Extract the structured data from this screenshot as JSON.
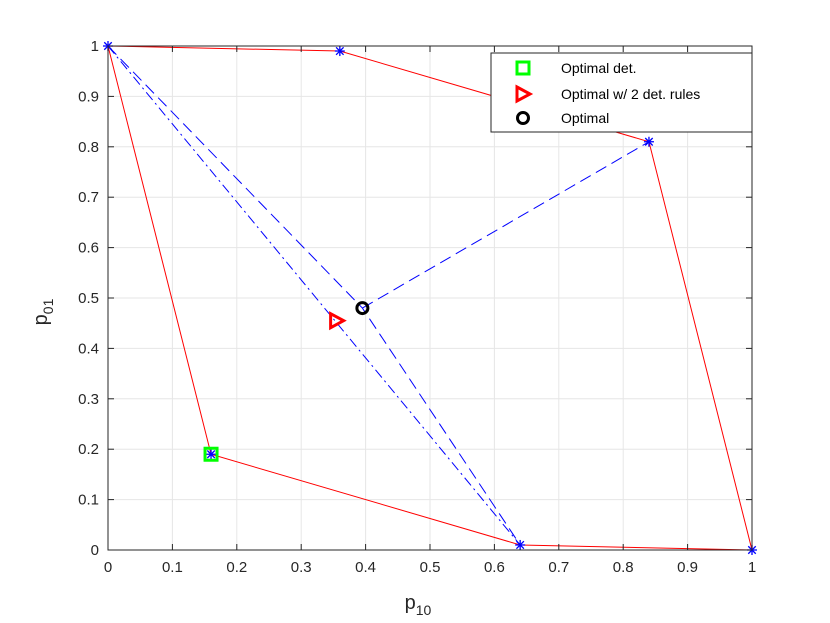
{
  "chart_data": {
    "type": "scatter",
    "xlabel": {
      "base": "p",
      "sub": "10"
    },
    "ylabel": {
      "base": "p",
      "sub": "01"
    },
    "xlim": [
      0,
      1
    ],
    "ylim": [
      0,
      1
    ],
    "xticks": [
      "0",
      "0.1",
      "0.2",
      "0.3",
      "0.4",
      "0.5",
      "0.6",
      "0.7",
      "0.8",
      "0.9",
      "1"
    ],
    "yticks": [
      "0",
      "0.1",
      "0.2",
      "0.3",
      "0.4",
      "0.5",
      "0.6",
      "0.7",
      "0.8",
      "0.9",
      "1"
    ],
    "grid": true,
    "legend_position": "top-right",
    "colors": {
      "hull": "#ff0000",
      "connector": "#0000ff",
      "star": "#0000ff",
      "optimal_det": "#00ff00",
      "optimal_2det": "#ff0000",
      "optimal": "#000000",
      "grid": "#e6e6e6",
      "axis": "#262626"
    },
    "hull_outline": {
      "points": [
        [
          0,
          1
        ],
        [
          0.36,
          0.99
        ],
        [
          0.84,
          0.81
        ],
        [
          1,
          0
        ],
        [
          0.64,
          0.01
        ],
        [
          0.16,
          0.19
        ],
        [
          0,
          1
        ]
      ]
    },
    "vertices": [
      [
        0,
        1
      ],
      [
        0.36,
        0.99
      ],
      [
        0.84,
        0.81
      ],
      [
        1,
        0
      ],
      [
        0.64,
        0.01
      ],
      [
        0.16,
        0.19
      ]
    ],
    "dashed_lines": [
      {
        "points": [
          [
            0,
            1
          ],
          [
            0.64,
            0.01
          ]
        ],
        "style": "dashdot"
      },
      {
        "points": [
          [
            0,
            1
          ],
          [
            0.395,
            0.48
          ],
          [
            0.64,
            0.01
          ]
        ],
        "style": "dashed"
      },
      {
        "points": [
          [
            0.395,
            0.48
          ],
          [
            0.84,
            0.81
          ]
        ],
        "style": "dashed"
      }
    ],
    "markers": [
      {
        "name": "Optimal det.",
        "shape": "square",
        "x": 0.16,
        "y": 0.19,
        "color": "#00ff00"
      },
      {
        "name": "Optimal w/ 2 det. rules",
        "shape": "triangle-right",
        "x": 0.355,
        "y": 0.455,
        "color": "#ff0000"
      },
      {
        "name": "Optimal",
        "shape": "circle",
        "x": 0.395,
        "y": 0.48,
        "color": "#000000"
      }
    ],
    "legend": [
      {
        "label": "Optimal det.",
        "shape": "square",
        "color": "#00ff00"
      },
      {
        "label": "Optimal w/ 2 det. rules",
        "shape": "triangle-right",
        "color": "#ff0000"
      },
      {
        "label": "Optimal",
        "shape": "circle",
        "color": "#000000"
      }
    ]
  }
}
